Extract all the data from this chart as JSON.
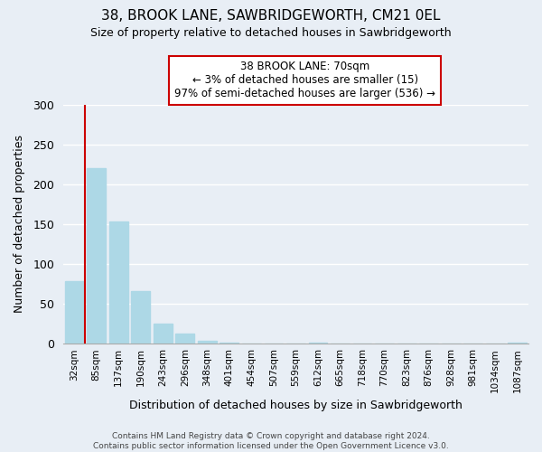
{
  "title": "38, BROOK LANE, SAWBRIDGEWORTH, CM21 0EL",
  "subtitle": "Size of property relative to detached houses in Sawbridgeworth",
  "xlabel": "Distribution of detached houses by size in Sawbridgeworth",
  "ylabel": "Number of detached properties",
  "bar_labels": [
    "32sqm",
    "85sqm",
    "137sqm",
    "190sqm",
    "243sqm",
    "296sqm",
    "348sqm",
    "401sqm",
    "454sqm",
    "507sqm",
    "559sqm",
    "612sqm",
    "665sqm",
    "718sqm",
    "770sqm",
    "823sqm",
    "876sqm",
    "928sqm",
    "981sqm",
    "1034sqm",
    "1087sqm"
  ],
  "bar_values": [
    78,
    220,
    153,
    66,
    25,
    13,
    4,
    1,
    0,
    0,
    0,
    1,
    0,
    0,
    0,
    0,
    0,
    0,
    0,
    0,
    1
  ],
  "bar_color": "#add8e6",
  "marker_line_color": "#cc0000",
  "ylim": [
    0,
    300
  ],
  "yticks": [
    0,
    50,
    100,
    150,
    200,
    250,
    300
  ],
  "annotation_title": "38 BROOK LANE: 70sqm",
  "annotation_line1": "← 3% of detached houses are smaller (15)",
  "annotation_line2": "97% of semi-detached houses are larger (536) →",
  "annotation_box_color": "#ffffff",
  "annotation_box_edgecolor": "#cc0000",
  "footer_line1": "Contains HM Land Registry data © Crown copyright and database right 2024.",
  "footer_line2": "Contains public sector information licensed under the Open Government Licence v3.0.",
  "background_color": "#e8eef5",
  "grid_color": "#ffffff"
}
